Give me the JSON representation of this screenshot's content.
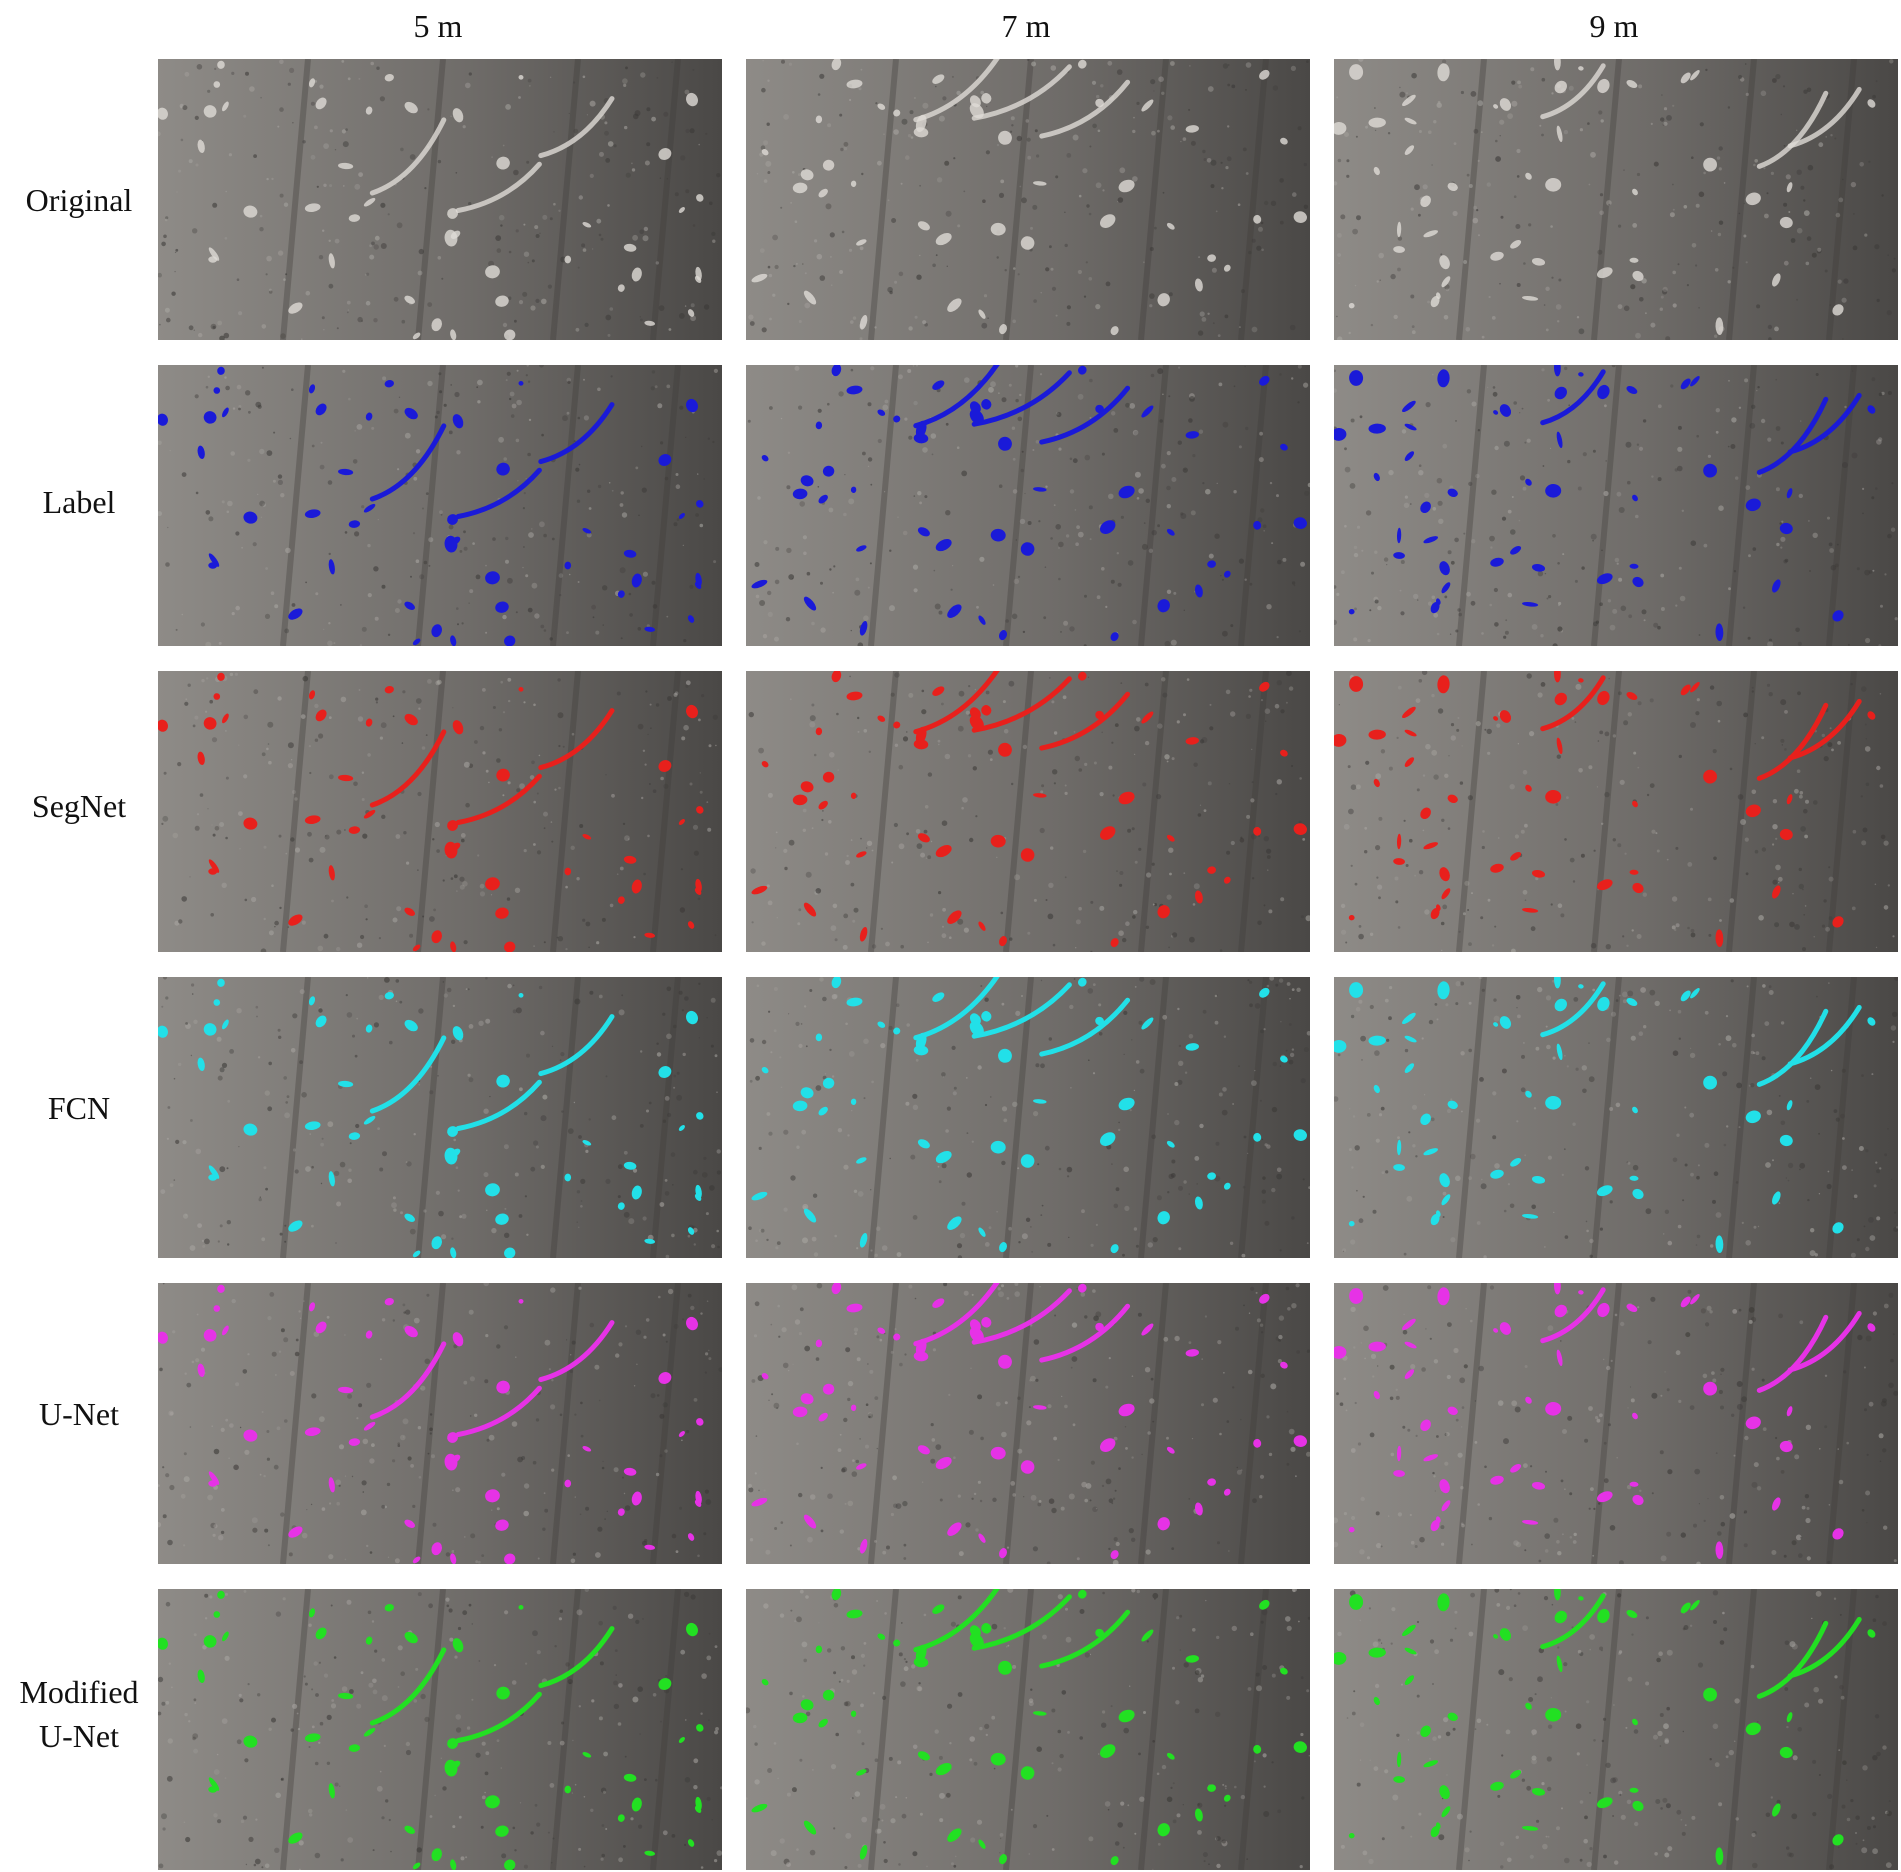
{
  "columns": [
    {
      "label": "5 m"
    },
    {
      "label": "7 m"
    },
    {
      "label": "9 m"
    }
  ],
  "rows": [
    {
      "label_lines": [
        "Original"
      ],
      "overlay_color": null
    },
    {
      "label_lines": [
        "Label"
      ],
      "overlay_color": "#1a1ad8"
    },
    {
      "label_lines": [
        "SegNet"
      ],
      "overlay_color": "#e8201c"
    },
    {
      "label_lines": [
        "FCN"
      ],
      "overlay_color": "#22e0e8"
    },
    {
      "label_lines": [
        "U-Net"
      ],
      "overlay_color": "#e632e6"
    },
    {
      "label_lines": [
        "Modified",
        "U-Net"
      ],
      "overlay_color": "#22e022"
    }
  ],
  "colors": {
    "soil_light": "#8e8b87",
    "soil_dark": "#4a4846",
    "residue_white": "#dedbd6"
  }
}
